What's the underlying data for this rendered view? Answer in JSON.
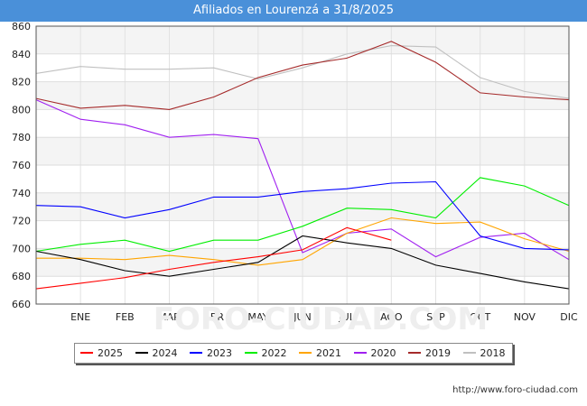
{
  "title": "Afiliados en Lourenzá a 31/8/2025",
  "watermark": "FORO-CIUDAD.COM",
  "footer": "http://www.foro-ciudad.com",
  "chart_data": {
    "type": "line",
    "title": "Afiliados en Lourenzá a 31/8/2025",
    "xlabel": "",
    "ylabel": "",
    "categories": [
      "",
      "ENE",
      "FEB",
      "MAR",
      "ABR",
      "MAY",
      "JUN",
      "JUL",
      "AGO",
      "SEP",
      "OCT",
      "NOV",
      "DIC"
    ],
    "ylim": [
      660,
      860
    ],
    "yticks": [
      660,
      680,
      700,
      720,
      740,
      760,
      780,
      800,
      820,
      840,
      860
    ],
    "grid": true,
    "legend_position": "bottom",
    "series": [
      {
        "name": "2018",
        "color": "#c0c0c0",
        "values": [
          826,
          831,
          829,
          829,
          830,
          822,
          830,
          840,
          846,
          845,
          823,
          813,
          808
        ]
      },
      {
        "name": "2019",
        "color": "#a52a2a",
        "values": [
          808,
          801,
          803,
          800,
          809,
          823,
          832,
          837,
          849,
          834,
          812,
          809,
          807
        ]
      },
      {
        "name": "2020",
        "color": "#a020f0",
        "values": [
          807,
          793,
          789,
          780,
          782,
          779,
          697,
          711,
          714,
          694,
          708,
          711,
          692
        ]
      },
      {
        "name": "2021",
        "color": "#ffa500",
        "values": [
          693,
          693,
          692,
          695,
          692,
          688,
          692,
          711,
          722,
          718,
          719,
          707,
          698
        ]
      },
      {
        "name": "2022",
        "color": "#00ee00",
        "values": [
          698,
          703,
          706,
          698,
          706,
          706,
          716,
          729,
          728,
          722,
          751,
          745,
          731
        ]
      },
      {
        "name": "2023",
        "color": "#0000ff",
        "values": [
          731,
          730,
          722,
          728,
          737,
          737,
          741,
          743,
          747,
          748,
          709,
          700,
          699
        ]
      },
      {
        "name": "2024",
        "color": "#000000",
        "values": [
          698,
          692,
          684,
          680,
          685,
          690,
          709,
          704,
          700,
          688,
          682,
          676,
          671
        ]
      },
      {
        "name": "2025",
        "color": "#ff0000",
        "values": [
          671,
          675,
          679,
          685,
          690,
          694,
          699,
          715,
          706,
          null,
          null,
          null,
          null
        ]
      }
    ]
  },
  "legend": [
    "2025",
    "2024",
    "2023",
    "2022",
    "2021",
    "2020",
    "2019",
    "2018"
  ]
}
